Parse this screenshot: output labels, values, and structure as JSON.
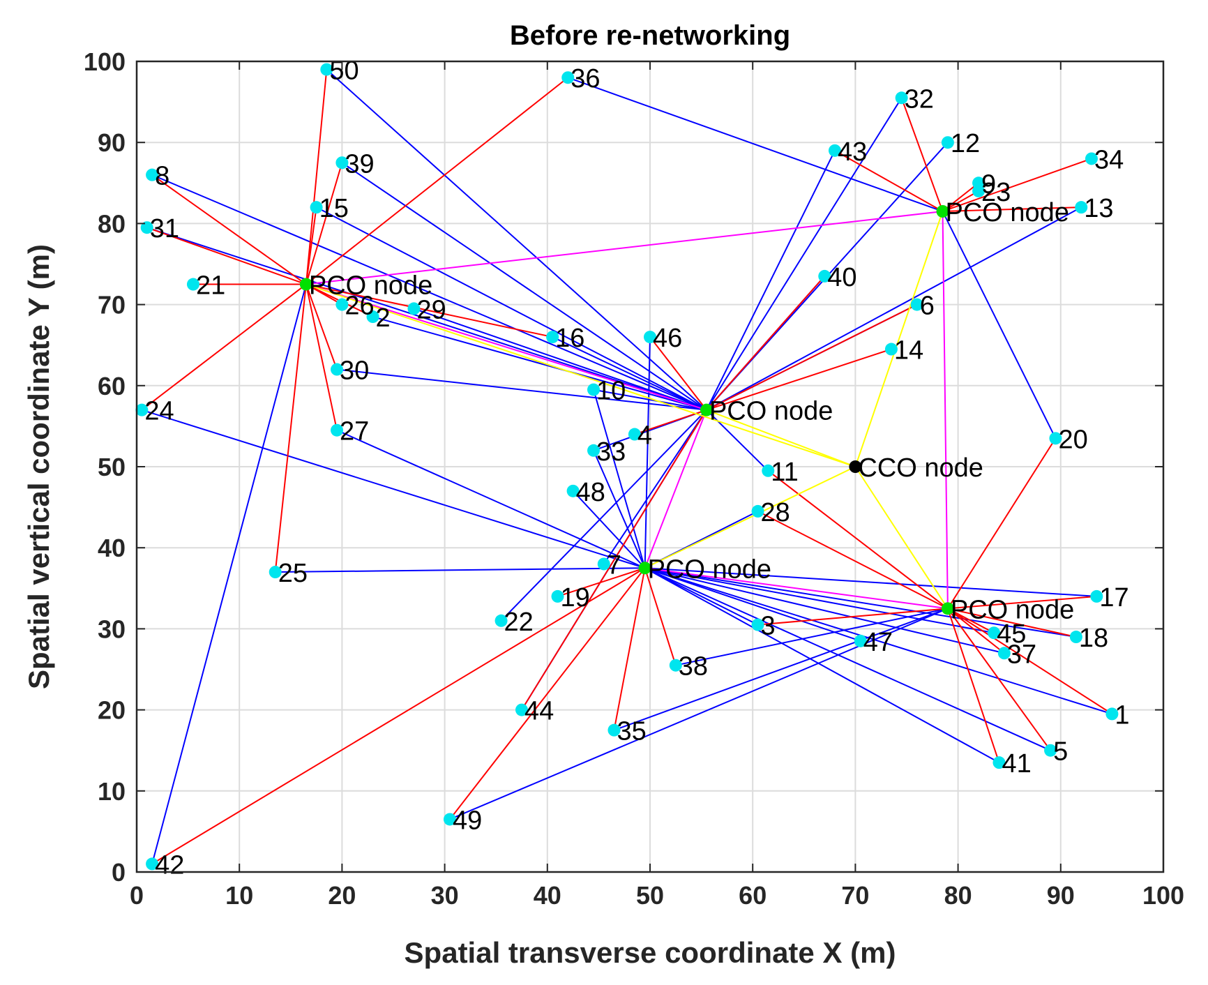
{
  "chart_data": {
    "type": "scatter",
    "title": "Before re-networking",
    "xlabel": "Spatial transverse coordinate X (m)",
    "ylabel": "Spatial vertical coordinate Y (m)",
    "xlim": [
      0,
      100
    ],
    "ylim": [
      0,
      100
    ],
    "grid": true,
    "xticks": [
      "0",
      "10",
      "20",
      "30",
      "40",
      "50",
      "60",
      "70",
      "80",
      "90",
      "100"
    ],
    "yticks": [
      "0",
      "10",
      "20",
      "30",
      "40",
      "50",
      "60",
      "70",
      "80",
      "90",
      "100"
    ],
    "colors": {
      "sta_marker": "#00e5ee",
      "pco_marker": "#00e000",
      "cco_marker": "#000000",
      "red_link": "#ff0000",
      "blue_link": "#0000ff",
      "magenta_link": "#ff00ff",
      "yellow_link": "#ffff00"
    },
    "cco": {
      "label": "CCO node",
      "x": 70,
      "y": 50
    },
    "pco": [
      {
        "id": "P1",
        "label": "PCO node",
        "x": 16.5,
        "y": 72.5
      },
      {
        "id": "P2",
        "label": "PCO node",
        "x": 78.5,
        "y": 81.5
      },
      {
        "id": "P3",
        "label": "PCO node",
        "x": 55.5,
        "y": 57
      },
      {
        "id": "P4",
        "label": "PCO node",
        "x": 49.5,
        "y": 37.5
      },
      {
        "id": "P5",
        "label": "PCO node",
        "x": 79,
        "y": 32.5
      }
    ],
    "stations": [
      {
        "label": "1",
        "x": 95,
        "y": 19.5
      },
      {
        "label": "2",
        "x": 23,
        "y": 68.5
      },
      {
        "label": "3",
        "x": 60.5,
        "y": 30.5
      },
      {
        "label": "4",
        "x": 48.5,
        "y": 54
      },
      {
        "label": "5",
        "x": 89,
        "y": 15
      },
      {
        "label": "6",
        "x": 76,
        "y": 70
      },
      {
        "label": "7",
        "x": 45.5,
        "y": 38
      },
      {
        "label": "8",
        "x": 1.5,
        "y": 86
      },
      {
        "label": "9",
        "x": 82,
        "y": 85
      },
      {
        "label": "10",
        "x": 44.5,
        "y": 59.5
      },
      {
        "label": "11",
        "x": 61.5,
        "y": 49.5
      },
      {
        "label": "12",
        "x": 79,
        "y": 90
      },
      {
        "label": "13",
        "x": 92,
        "y": 82
      },
      {
        "label": "14",
        "x": 73.5,
        "y": 64.5
      },
      {
        "label": "15",
        "x": 17.5,
        "y": 82
      },
      {
        "label": "16",
        "x": 40.5,
        "y": 66
      },
      {
        "label": "17",
        "x": 93.5,
        "y": 34
      },
      {
        "label": "18",
        "x": 91.5,
        "y": 29
      },
      {
        "label": "19",
        "x": 41,
        "y": 34
      },
      {
        "label": "20",
        "x": 89.5,
        "y": 53.5
      },
      {
        "label": "21",
        "x": 5.5,
        "y": 72.5
      },
      {
        "label": "22",
        "x": 35.5,
        "y": 31
      },
      {
        "label": "23",
        "x": 82,
        "y": 84
      },
      {
        "label": "24",
        "x": 0.5,
        "y": 57
      },
      {
        "label": "25",
        "x": 13.5,
        "y": 37
      },
      {
        "label": "26",
        "x": 20,
        "y": 70
      },
      {
        "label": "27",
        "x": 19.5,
        "y": 54.5
      },
      {
        "label": "29",
        "x": 27,
        "y": 69.5
      },
      {
        "label": "28",
        "x": 60.5,
        "y": 44.5
      },
      {
        "label": "30",
        "x": 19.5,
        "y": 62
      },
      {
        "label": "31",
        "x": 1,
        "y": 79.5
      },
      {
        "label": "32",
        "x": 74.5,
        "y": 95.5
      },
      {
        "label": "33",
        "x": 44.5,
        "y": 52
      },
      {
        "label": "34",
        "x": 93,
        "y": 88
      },
      {
        "label": "35",
        "x": 46.5,
        "y": 17.5
      },
      {
        "label": "36",
        "x": 42,
        "y": 98
      },
      {
        "label": "37",
        "x": 84.5,
        "y": 27
      },
      {
        "label": "38",
        "x": 52.5,
        "y": 25.5
      },
      {
        "label": "39",
        "x": 20,
        "y": 87.5
      },
      {
        "label": "40",
        "x": 67,
        "y": 73.5
      },
      {
        "label": "41",
        "x": 84,
        "y": 13.5
      },
      {
        "label": "42",
        "x": 1.5,
        "y": 1
      },
      {
        "label": "43",
        "x": 68,
        "y": 89
      },
      {
        "label": "44",
        "x": 37.5,
        "y": 20
      },
      {
        "label": "45",
        "x": 83.5,
        "y": 29.5
      },
      {
        "label": "46",
        "x": 50,
        "y": 66
      },
      {
        "label": "47",
        "x": 70.5,
        "y": 28.5
      },
      {
        "label": "48",
        "x": 42.5,
        "y": 47
      },
      {
        "label": "49",
        "x": 30.5,
        "y": 6.5
      },
      {
        "label": "50",
        "x": 18.5,
        "y": 99
      }
    ],
    "links": {
      "red": [
        [
          "P1",
          "8"
        ],
        [
          "P1",
          "31"
        ],
        [
          "P1",
          "21"
        ],
        [
          "P1",
          "15"
        ],
        [
          "P1",
          "39"
        ],
        [
          "P1",
          "50"
        ],
        [
          "P1",
          "26"
        ],
        [
          "P1",
          "2"
        ],
        [
          "P1",
          "30"
        ],
        [
          "P1",
          "27"
        ],
        [
          "P1",
          "25"
        ],
        [
          "P1",
          "24"
        ],
        [
          "P1",
          "36"
        ],
        [
          "P1",
          "16"
        ],
        [
          "P3",
          "40"
        ],
        [
          "P3",
          "14"
        ],
        [
          "P3",
          "6"
        ],
        [
          "P3",
          "46"
        ],
        [
          "P3",
          "4"
        ],
        [
          "P3",
          "44"
        ],
        [
          "P4",
          "19"
        ],
        [
          "P4",
          "38"
        ],
        [
          "P4",
          "35"
        ],
        [
          "P4",
          "42"
        ],
        [
          "P4",
          "49"
        ],
        [
          "P2",
          "43"
        ],
        [
          "P2",
          "32"
        ],
        [
          "P2",
          "34"
        ],
        [
          "P2",
          "23"
        ],
        [
          "P2",
          "9"
        ],
        [
          "P2",
          "13"
        ],
        [
          "P5",
          "20"
        ],
        [
          "P5",
          "17"
        ],
        [
          "P5",
          "18"
        ],
        [
          "P5",
          "1"
        ],
        [
          "P5",
          "5"
        ],
        [
          "P5",
          "41"
        ],
        [
          "P5",
          "37"
        ],
        [
          "P5",
          "45"
        ],
        [
          "P5",
          "3"
        ],
        [
          "P5",
          "11"
        ],
        [
          "P5",
          "28"
        ]
      ],
      "blue": [
        [
          "P1",
          "42"
        ],
        [
          "P1",
          "21"
        ],
        [
          "P3",
          "8"
        ],
        [
          "P3",
          "31"
        ],
        [
          "P3",
          "15"
        ],
        [
          "P3",
          "39"
        ],
        [
          "P3",
          "50"
        ],
        [
          "P3",
          "29"
        ],
        [
          "P3",
          "2"
        ],
        [
          "P3",
          "16"
        ],
        [
          "P3",
          "30"
        ],
        [
          "P3",
          "10"
        ],
        [
          "P3",
          "43"
        ],
        [
          "P3",
          "32"
        ],
        [
          "P3",
          "12"
        ],
        [
          "P3",
          "40"
        ],
        [
          "P3",
          "6"
        ],
        [
          "P3",
          "13"
        ],
        [
          "P3",
          "11"
        ],
        [
          "P3",
          "7"
        ],
        [
          "P3",
          "22"
        ],
        [
          "P3",
          "44"
        ],
        [
          "P3",
          "33"
        ],
        [
          "P2",
          "36"
        ],
        [
          "P2",
          "20"
        ],
        [
          "P4",
          "24"
        ],
        [
          "P4",
          "27"
        ],
        [
          "P4",
          "25"
        ],
        [
          "P4",
          "48"
        ],
        [
          "P4",
          "33"
        ],
        [
          "P4",
          "46"
        ],
        [
          "P4",
          "28"
        ],
        [
          "P4",
          "3"
        ],
        [
          "P4",
          "47"
        ],
        [
          "P4",
          "17"
        ],
        [
          "P4",
          "18"
        ],
        [
          "P4",
          "1"
        ],
        [
          "P4",
          "5"
        ],
        [
          "P4",
          "41"
        ],
        [
          "P4",
          "45"
        ],
        [
          "P4",
          "37"
        ],
        [
          "P4",
          "10"
        ],
        [
          "P5",
          "38"
        ],
        [
          "P5",
          "35"
        ],
        [
          "P5",
          "49"
        ]
      ],
      "magenta": [
        [
          "P1",
          "P2"
        ],
        [
          "P1",
          "P3"
        ],
        [
          "P3",
          "P4"
        ],
        [
          "P4",
          "P5"
        ],
        [
          "P2",
          "P5"
        ]
      ],
      "yellow": [
        [
          "P1",
          "CCO"
        ],
        [
          "P3",
          "CCO"
        ],
        [
          "P2",
          "CCO"
        ],
        [
          "P5",
          "CCO"
        ],
        [
          "P4",
          "CCO"
        ]
      ]
    }
  }
}
